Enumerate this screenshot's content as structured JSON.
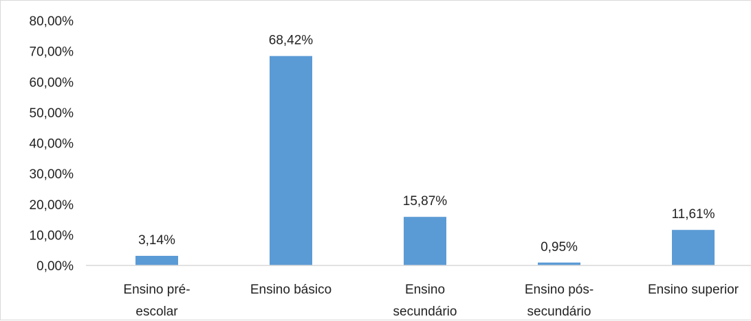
{
  "chart_data": {
    "type": "bar",
    "title": "",
    "xlabel": "",
    "ylabel": "",
    "categories": [
      [
        "Ensino pré-",
        "escolar"
      ],
      [
        "Ensino básico"
      ],
      [
        "Ensino",
        "secundário"
      ],
      [
        "Ensino pós-",
        "secundário"
      ],
      [
        "Ensino superior"
      ]
    ],
    "values": [
      3.14,
      68.42,
      15.87,
      0.95,
      11.61
    ],
    "data_labels": [
      "3,14%",
      "68,42%",
      "15,87%",
      "0,95%",
      "11,61%"
    ],
    "y_ticks": [
      "0,00%",
      "10,00%",
      "20,00%",
      "30,00%",
      "40,00%",
      "50,00%",
      "60,00%",
      "70,00%",
      "80,00%"
    ],
    "ylim": [
      0,
      80
    ],
    "grid": false,
    "legend": "none",
    "bar_color": "#5b9bd5",
    "axis_color": "#d9d9d9"
  }
}
